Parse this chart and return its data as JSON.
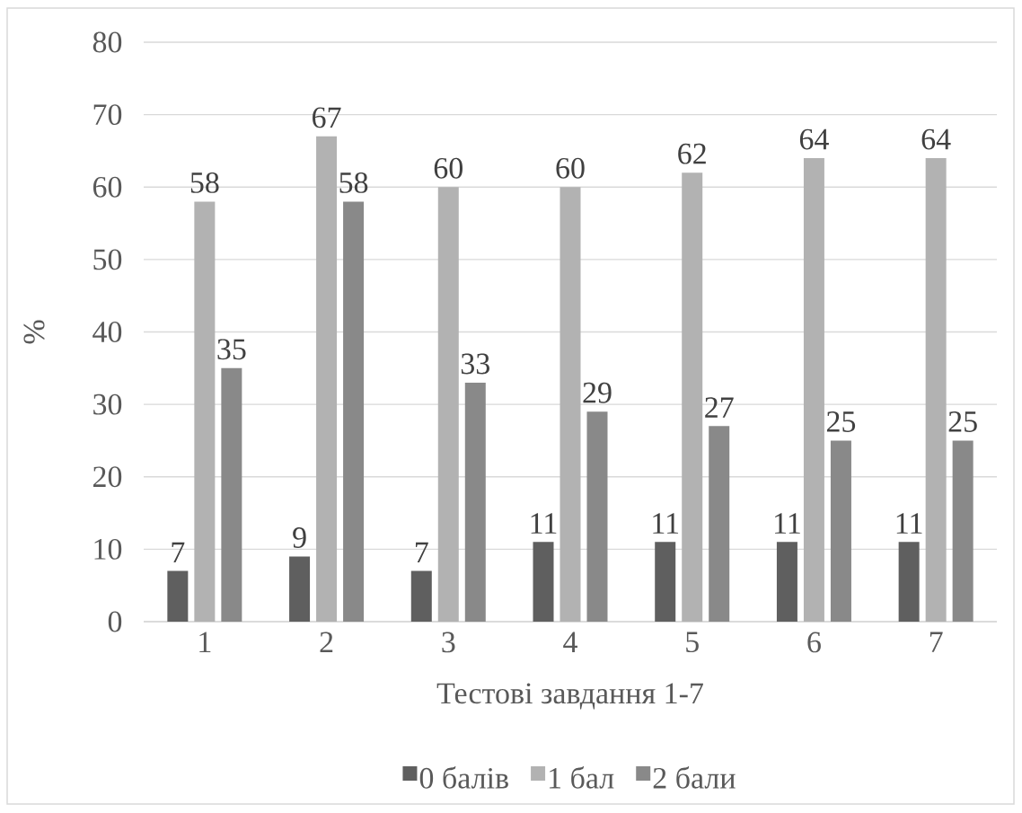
{
  "chart_data": {
    "type": "bar",
    "xlabel": "Тестові завдання 1-7",
    "ylabel": "%",
    "categories": [
      "1",
      "2",
      "3",
      "4",
      "5",
      "6",
      "7"
    ],
    "series": [
      {
        "name": "0 балів",
        "color": "#5f5f5f",
        "values": [
          7,
          9,
          7,
          11,
          11,
          11,
          11
        ]
      },
      {
        "name": "1 бал",
        "color": "#b2b2b2",
        "values": [
          58,
          67,
          60,
          60,
          62,
          64,
          64
        ]
      },
      {
        "name": "2 бали",
        "color": "#898989",
        "values": [
          35,
          58,
          33,
          29,
          27,
          25,
          25
        ]
      }
    ],
    "ylim": [
      0,
      80
    ],
    "yticks": [
      0,
      10,
      20,
      30,
      40,
      50,
      60,
      70,
      80
    ],
    "grid": "y",
    "data_labels": true,
    "legend": "bottom"
  }
}
